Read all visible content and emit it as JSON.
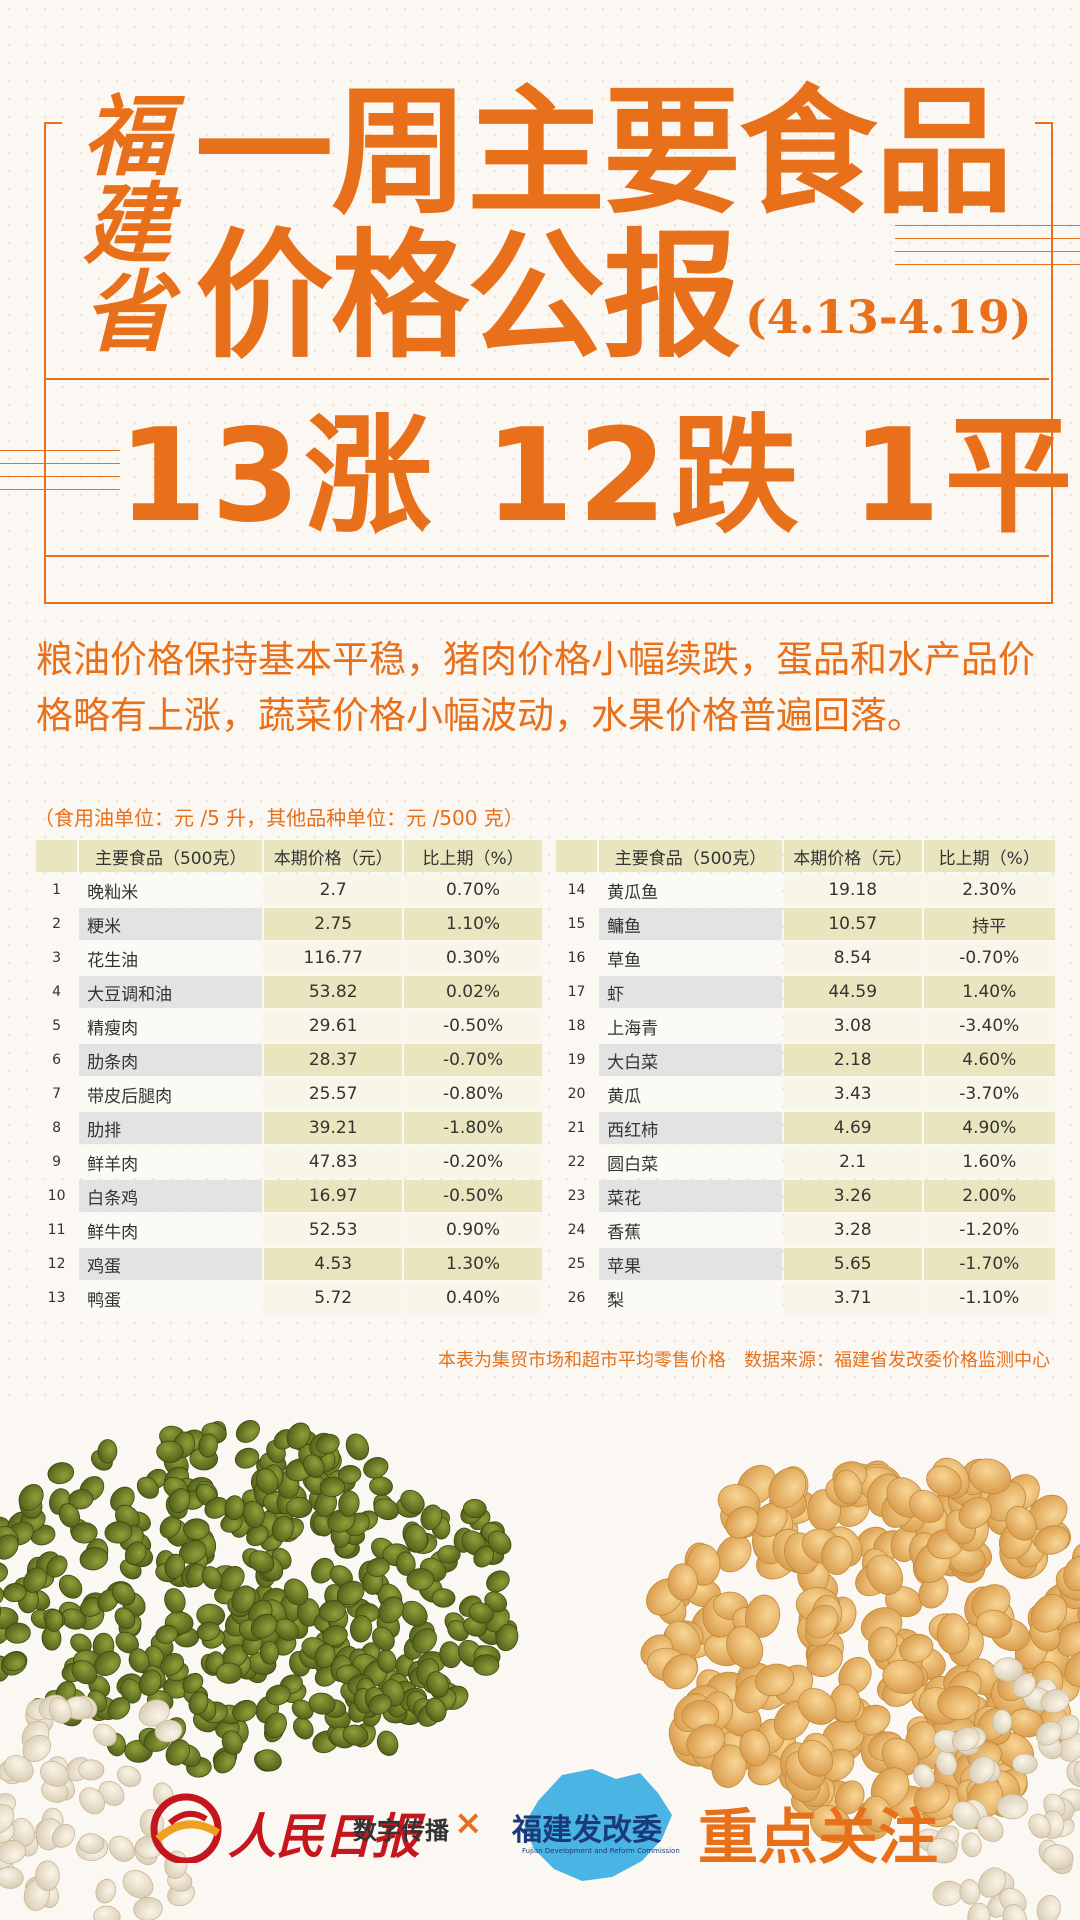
{
  "header": {
    "province": "福建省",
    "title_line1": "一周主要食品",
    "title_line2": "价格公报",
    "dates": "(4.13-4.19)",
    "headline": "13涨 12跌 1平"
  },
  "summary": "粮油价格保持基本平稳，猪肉价格小幅续跌，蛋品和水产品价格略有上涨，蔬菜价格小幅波动，水果价格普遍回落。",
  "unit_note": "（食用油单位：元 /5 升，其他品种单位：元 /500 克）",
  "table": {
    "headers": [
      "主要食品（500克）",
      "本期价格（元）",
      "比上期（%）"
    ],
    "left": [
      {
        "no": "1",
        "name": "晚籼米",
        "price": "2.7",
        "change": "0.70%"
      },
      {
        "no": "2",
        "name": "粳米",
        "price": "2.75",
        "change": "1.10%"
      },
      {
        "no": "3",
        "name": "花生油",
        "price": "116.77",
        "change": "0.30%"
      },
      {
        "no": "4",
        "name": "大豆调和油",
        "price": "53.82",
        "change": "0.02%"
      },
      {
        "no": "5",
        "name": "精瘦肉",
        "price": "29.61",
        "change": "-0.50%"
      },
      {
        "no": "6",
        "name": "肋条肉",
        "price": "28.37",
        "change": "-0.70%"
      },
      {
        "no": "7",
        "name": "带皮后腿肉",
        "price": "25.57",
        "change": "-0.80%"
      },
      {
        "no": "8",
        "name": "肋排",
        "price": "39.21",
        "change": "-1.80%"
      },
      {
        "no": "9",
        "name": "鲜羊肉",
        "price": "47.83",
        "change": "-0.20%"
      },
      {
        "no": "10",
        "name": "白条鸡",
        "price": "16.97",
        "change": "-0.50%"
      },
      {
        "no": "11",
        "name": "鲜牛肉",
        "price": "52.53",
        "change": "0.90%"
      },
      {
        "no": "12",
        "name": "鸡蛋",
        "price": "4.53",
        "change": "1.30%"
      },
      {
        "no": "13",
        "name": "鸭蛋",
        "price": "5.72",
        "change": "0.40%"
      }
    ],
    "right": [
      {
        "no": "14",
        "name": "黄瓜鱼",
        "price": "19.18",
        "change": "2.30%"
      },
      {
        "no": "15",
        "name": "鳙鱼",
        "price": "10.57",
        "change": "持平"
      },
      {
        "no": "16",
        "name": "草鱼",
        "price": "8.54",
        "change": "-0.70%"
      },
      {
        "no": "17",
        "name": "虾",
        "price": "44.59",
        "change": "1.40%"
      },
      {
        "no": "18",
        "name": "上海青",
        "price": "3.08",
        "change": "-3.40%"
      },
      {
        "no": "19",
        "name": "大白菜",
        "price": "2.18",
        "change": "4.60%"
      },
      {
        "no": "20",
        "name": "黄瓜",
        "price": "3.43",
        "change": "-3.70%"
      },
      {
        "no": "21",
        "name": "西红柿",
        "price": "4.69",
        "change": "4.90%"
      },
      {
        "no": "22",
        "name": "圆白菜",
        "price": "2.1",
        "change": "1.60%"
      },
      {
        "no": "23",
        "name": "菜花",
        "price": "3.26",
        "change": "2.00%"
      },
      {
        "no": "24",
        "name": "香蕉",
        "price": "3.28",
        "change": "-1.20%"
      },
      {
        "no": "25",
        "name": "苹果",
        "price": "5.65",
        "change": "-1.70%"
      },
      {
        "no": "26",
        "name": "梨",
        "price": "3.71",
        "change": "-1.10%"
      }
    ]
  },
  "footnote": "本表为集贸市场和超市平均零售价格　数据来源：福建省发改委价格监测中心",
  "footer": {
    "people_daily": "人民日报",
    "people_daily_sub": "数字传播",
    "cross": "×",
    "fj_logo": "福建发改委",
    "fj_logo_en": "Fujian Development and Reform Commission",
    "focus": "重点关注"
  },
  "colors": {
    "accent": "#e8701a",
    "row_alt": "#e9e6bf",
    "people_daily_red": "#c4161c",
    "fj_blue": "#1a3a7a"
  }
}
